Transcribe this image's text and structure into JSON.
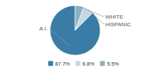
{
  "chart_data": {
    "type": "pie",
    "categories": [
      "A.I.",
      "HISPANIC",
      "WHITE"
    ],
    "values": [
      87.7,
      6.8,
      5.5
    ],
    "value_labels": [
      "87.7%",
      "6.8%",
      "5.5%"
    ],
    "colors": [
      "#3a7ca5",
      "#c2d8e3",
      "#8aafc0"
    ],
    "legend": "bottom"
  }
}
